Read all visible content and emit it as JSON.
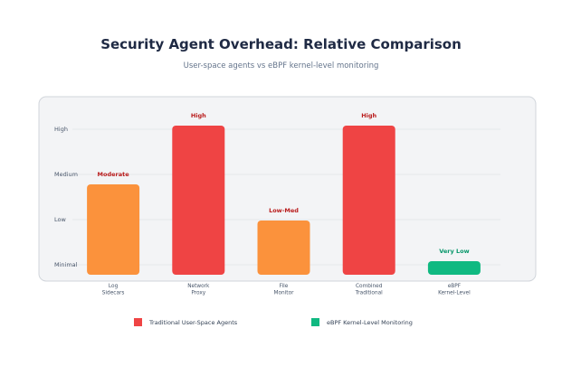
{
  "title": "Security Agent Overhead: Relative Comparison",
  "subtitle": "User-space agents vs eBPF kernel-level monitoring",
  "colors": {
    "high": "#ef4444",
    "moderate": "#fb923c",
    "very_low": "#10b981",
    "panel_bg": "#f3f4f6",
    "panel_border": "#d1d5db",
    "grid": "#e5e7eb"
  },
  "chart_data": {
    "type": "bar",
    "y_ticks": [
      {
        "label": "Minimal",
        "value": 0.5
      },
      {
        "label": "Low",
        "value": 1.5
      },
      {
        "label": "Medium",
        "value": 2.5
      },
      {
        "label": "High",
        "value": 3.5
      }
    ],
    "ylim": [
      0,
      3.5
    ],
    "grid": true,
    "bars": [
      {
        "category": [
          "Log",
          "Sidecars"
        ],
        "value": 2.0,
        "label": "Moderate",
        "color": "#fb923c",
        "label_color": "#b91c1c"
      },
      {
        "category": [
          "Network",
          "Proxy"
        ],
        "value": 3.3,
        "label": "High",
        "color": "#ef4444",
        "label_color": "#b91c1c"
      },
      {
        "category": [
          "File",
          "Monitor"
        ],
        "value": 1.2,
        "label": "Low-Med",
        "color": "#fb923c",
        "label_color": "#b91c1c"
      },
      {
        "category": [
          "Combined",
          "Traditional"
        ],
        "value": 3.3,
        "label": "High",
        "color": "#ef4444",
        "label_color": "#b91c1c"
      },
      {
        "category": [
          "eBPF",
          "Kernel-Level"
        ],
        "value": 0.3,
        "label": "Very Low",
        "color": "#10b981",
        "label_color": "#059669"
      }
    ],
    "legend": [
      {
        "name": "Traditional User-Space Agents",
        "color": "#ef4444"
      },
      {
        "name": "eBPF Kernel-Level Monitoring",
        "color": "#10b981"
      }
    ]
  }
}
